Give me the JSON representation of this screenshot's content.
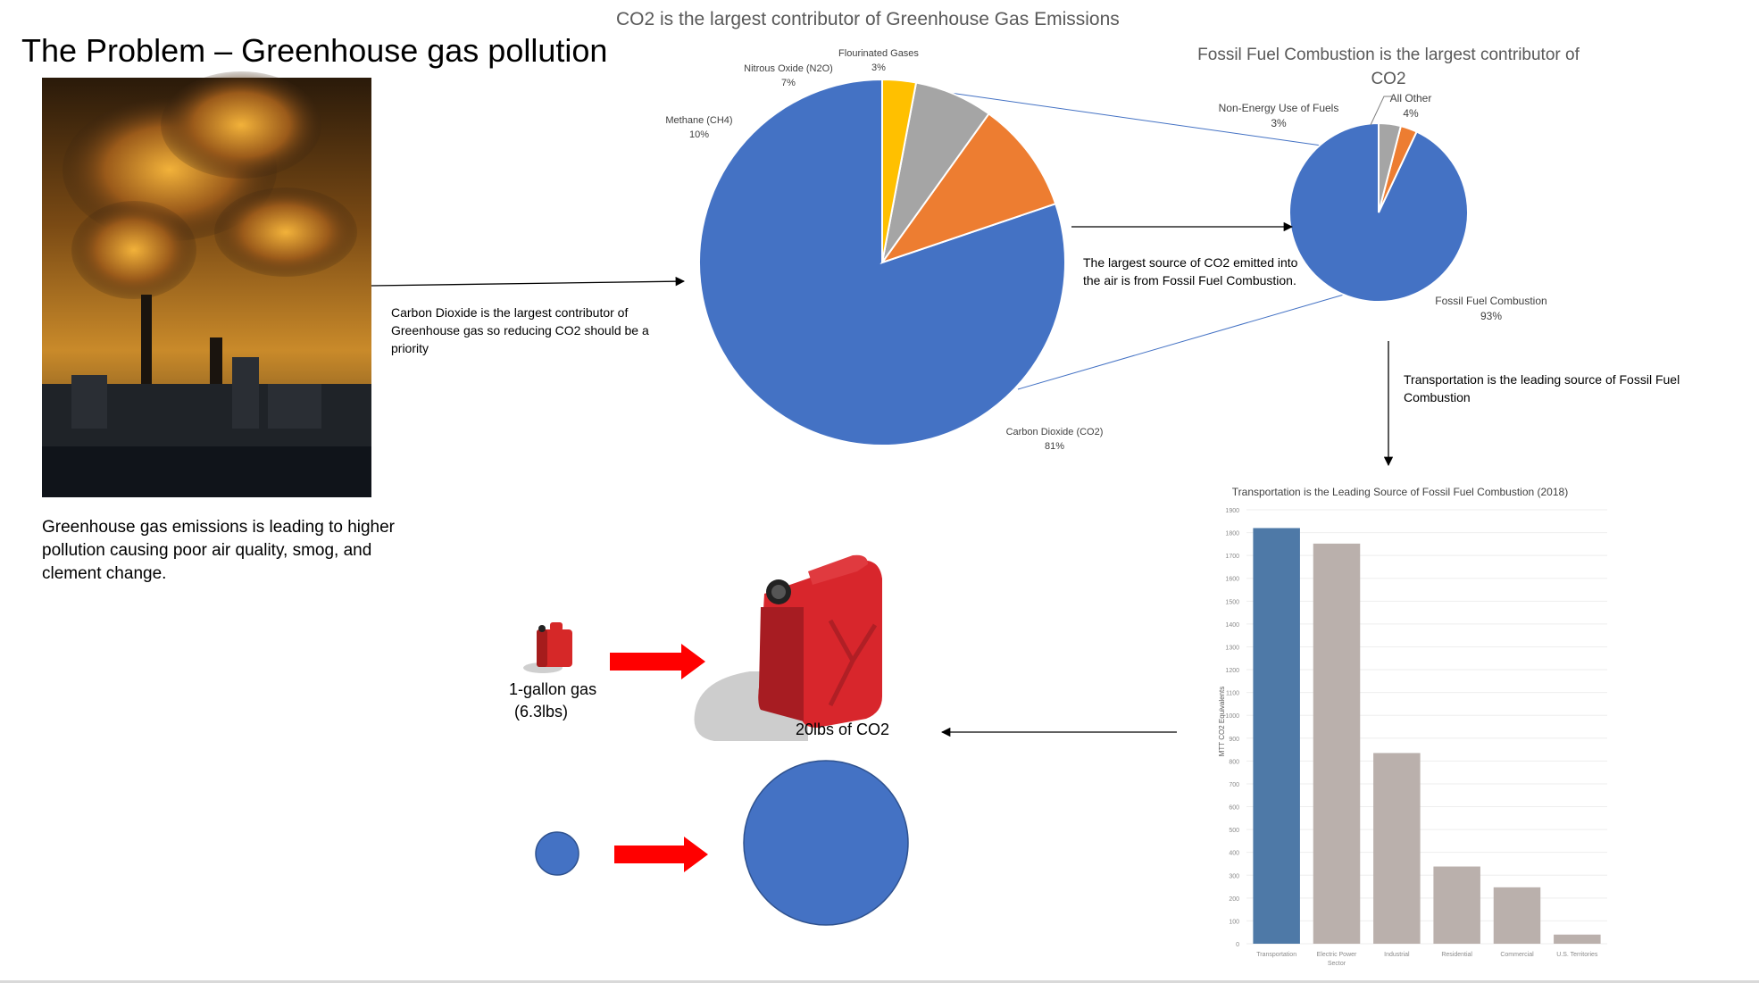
{
  "page_title": "The Problem – Greenhouse gas pollution",
  "problem_text": "Greenhouse gas emissions is leading to higher pollution causing poor air quality, smog, and clement change.",
  "photo_alt": "smokestacks",
  "notes": {
    "co2": "Carbon Dioxide is the largest contributor of Greenhouse gas so reducing CO2 should be a priority",
    "fossil": "The largest source of CO2 emitted into the air is from Fossil Fuel Combustion.",
    "transport": "Transportation is the leading source of Fossil Fuel Combustion"
  },
  "gallon": {
    "label_line1": "1-gallon gas",
    "label_line2": "(6.3lbs)",
    "result": "20lbs of CO2"
  },
  "colors": {
    "blue": "#4472c4",
    "orange": "#ed7d31",
    "gray": "#a5a5a5",
    "yellow": "#ffc000",
    "bar_highlight": "#4e79a7",
    "bar_other": "#bab0ac",
    "arrow_red": "#ff0000"
  },
  "chart_data": [
    {
      "type": "pie",
      "title": "CO2 is the largest contributor of Greenhouse Gas Emissions",
      "slices": [
        {
          "name": "Carbon Dioxide (CO2)",
          "value": 81,
          "label": "81%"
        },
        {
          "name": "Methane (CH4)",
          "value": 10,
          "label": "10%"
        },
        {
          "name": "Nitrous Oxide (N2O)",
          "value": 7,
          "label": "7%"
        },
        {
          "name": "Flourinated Gases",
          "value": 3,
          "label": "3%"
        }
      ]
    },
    {
      "type": "pie",
      "title": "Fossil Fuel Combustion is the largest contributor of CO2",
      "slices": [
        {
          "name": "Fossil Fuel Combustion",
          "value": 93,
          "label": "93%"
        },
        {
          "name": "Non-Energy Use of Fuels",
          "value": 3,
          "label": "3%"
        },
        {
          "name": "All Other",
          "value": 4,
          "label": "4%"
        }
      ]
    },
    {
      "type": "bar",
      "title": "Transportation is the Leading Source of Fossil Fuel Combustion (2018)",
      "ylabel": "MTT CO2 Equivalents",
      "ylim": [
        0,
        1900
      ],
      "yticks": [
        0,
        100,
        200,
        300,
        400,
        500,
        600,
        700,
        800,
        900,
        1000,
        1100,
        1200,
        1300,
        1400,
        1500,
        1600,
        1700,
        1800,
        1900
      ],
      "categories": [
        "Transportation",
        "Electric Power Sector",
        "Industrial",
        "Residential",
        "Commercial",
        "U.S. Territories"
      ],
      "values": [
        1820,
        1752,
        835,
        338,
        247,
        40
      ]
    }
  ]
}
